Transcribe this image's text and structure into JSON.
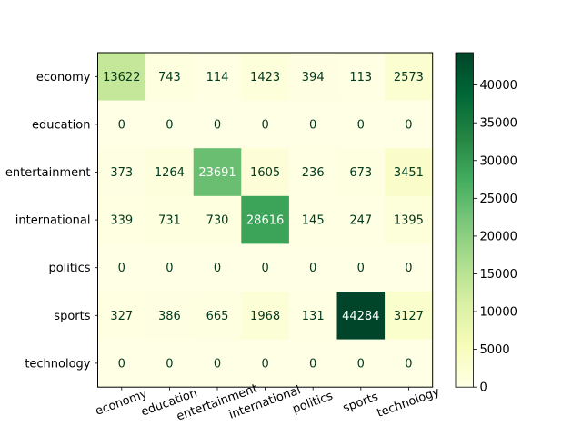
{
  "chart_data": {
    "type": "heatmap",
    "title": "",
    "xlabel": "",
    "ylabel": "",
    "rows": [
      "economy",
      "education",
      "entertainment",
      "international",
      "politics",
      "sports",
      "technology"
    ],
    "columns": [
      "economy",
      "education",
      "entertainment",
      "international",
      "politics",
      "sports",
      "technology"
    ],
    "values": [
      [
        13622,
        743,
        114,
        1423,
        394,
        113,
        2573
      ],
      [
        0,
        0,
        0,
        0,
        0,
        0,
        0
      ],
      [
        373,
        1264,
        23691,
        1605,
        236,
        673,
        3451
      ],
      [
        339,
        731,
        730,
        28616,
        145,
        247,
        1395
      ],
      [
        0,
        0,
        0,
        0,
        0,
        0,
        0
      ],
      [
        327,
        386,
        665,
        1968,
        131,
        44284,
        3127
      ],
      [
        0,
        0,
        0,
        0,
        0,
        0,
        0
      ]
    ],
    "colormap": "YlGn",
    "colorbar": {
      "min": 0,
      "max": 44284,
      "ticks": [
        0,
        5000,
        10000,
        15000,
        20000,
        25000,
        30000,
        35000,
        40000
      ]
    },
    "x_tick_rotation_deg": 20,
    "grid": false
  }
}
